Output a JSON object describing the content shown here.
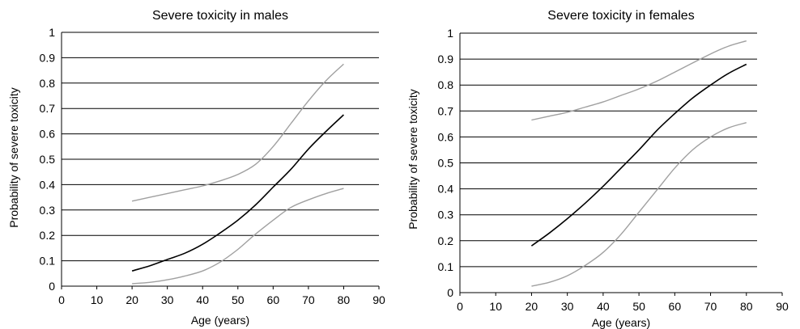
{
  "chart_data": [
    {
      "type": "line",
      "title": "Severe toxicity in males",
      "xlabel": "Age (years)",
      "ylabel": "Probability of severe toxicity",
      "xlim": [
        0,
        90
      ],
      "ylim": [
        0,
        1
      ],
      "xticks": [
        "0",
        "10",
        "20",
        "30",
        "40",
        "50",
        "60",
        "70",
        "80",
        "90"
      ],
      "yticks": [
        "0",
        "0.1",
        "0.2",
        "0.3",
        "0.4",
        "0.5",
        "0.6",
        "0.7",
        "0.8",
        "0.9",
        "1"
      ],
      "grid": "horizontal",
      "x": [
        20,
        25,
        30,
        35,
        40,
        45,
        50,
        55,
        60,
        65,
        70,
        75,
        80
      ],
      "series": [
        {
          "color": "#000000",
          "values": [
            0.06,
            0.08,
            0.105,
            0.13,
            0.165,
            0.21,
            0.26,
            0.32,
            0.39,
            0.46,
            0.54,
            0.61,
            0.675
          ]
        },
        {
          "color": "#a0a0a0",
          "values": [
            0.335,
            0.35,
            0.365,
            0.38,
            0.395,
            0.415,
            0.44,
            0.48,
            0.55,
            0.64,
            0.73,
            0.81,
            0.875
          ]
        },
        {
          "color": "#a0a0a0",
          "values": [
            0.01,
            0.015,
            0.025,
            0.04,
            0.06,
            0.095,
            0.145,
            0.205,
            0.26,
            0.31,
            0.34,
            0.365,
            0.385
          ]
        }
      ]
    },
    {
      "type": "line",
      "title": "Severe toxicity in females",
      "xlabel": "Age (years)",
      "ylabel": "Probability of severe toxicity",
      "xlim": [
        0,
        90
      ],
      "ylim": [
        0,
        1
      ],
      "xticks": [
        "0",
        "10",
        "20",
        "30",
        "40",
        "50",
        "60",
        "70",
        "80",
        "90"
      ],
      "yticks": [
        "0",
        "0.1",
        "0.2",
        "0.3",
        "0.4",
        "0.5",
        "0.6",
        "0.7",
        "0.8",
        "0.9",
        "1"
      ],
      "grid": "horizontal",
      "x": [
        20,
        25,
        30,
        35,
        40,
        45,
        50,
        55,
        60,
        65,
        70,
        75,
        80
      ],
      "series": [
        {
          "color": "#000000",
          "values": [
            0.18,
            0.23,
            0.285,
            0.345,
            0.41,
            0.48,
            0.55,
            0.625,
            0.69,
            0.75,
            0.8,
            0.845,
            0.88
          ]
        },
        {
          "color": "#a0a0a0",
          "values": [
            0.665,
            0.68,
            0.695,
            0.715,
            0.735,
            0.76,
            0.785,
            0.815,
            0.85,
            0.885,
            0.92,
            0.95,
            0.97
          ]
        },
        {
          "color": "#a0a0a0",
          "values": [
            0.025,
            0.04,
            0.065,
            0.105,
            0.155,
            0.225,
            0.31,
            0.395,
            0.48,
            0.55,
            0.6,
            0.635,
            0.655
          ]
        }
      ]
    }
  ]
}
